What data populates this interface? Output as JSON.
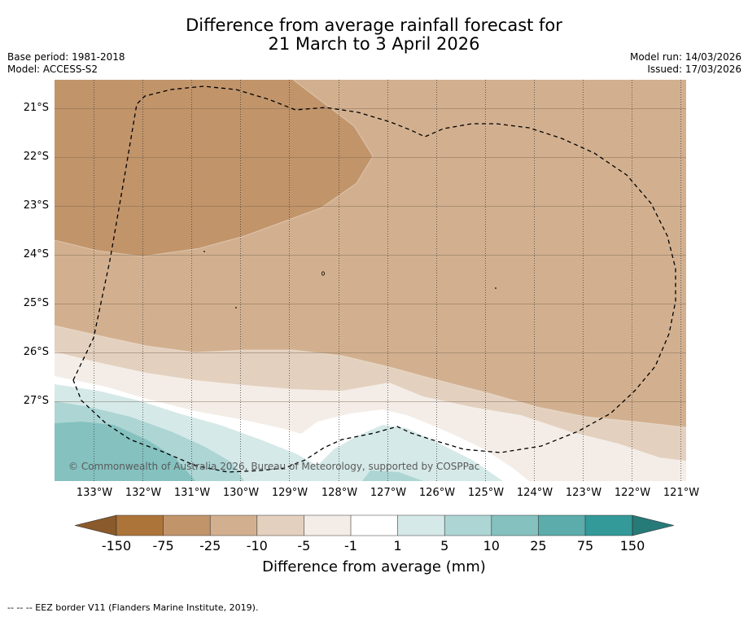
{
  "title": {
    "line1": "Difference from average rainfall forecast for",
    "line2": "21 March to 3 April 2026"
  },
  "meta_left": {
    "base_period": "Base period: 1981-2018",
    "model": "Model: ACCESS-S2"
  },
  "meta_right": {
    "model_run": "Model run: 14/03/2026",
    "issued": "Issued: 17/03/2026"
  },
  "map": {
    "latitude_labels": [
      "21°S",
      "22°S",
      "23°S",
      "24°S",
      "25°S",
      "26°S",
      "27°S"
    ],
    "longitude_labels": [
      "133°W",
      "132°W",
      "131°W",
      "130°W",
      "129°W",
      "128°W",
      "127°W",
      "126°W",
      "125°W",
      "124°W",
      "123°W",
      "122°W",
      "121°W"
    ],
    "copyright": "© Commonwealth of Australia 2026, Bureau of Meteorology, supported by COSPPac"
  },
  "colorbar": {
    "ticks": [
      "-150",
      "-75",
      "-25",
      "-10",
      "-5",
      "-1",
      "1",
      "5",
      "10",
      "25",
      "75",
      "150"
    ],
    "colors": [
      "#ad743a",
      "#c1946a",
      "#d2b08f",
      "#e3d0be",
      "#f4ede7",
      "#ffffff",
      "#d5e9e8",
      "#acd5d4",
      "#84c1bf",
      "#5bacab",
      "#339999"
    ],
    "under_color": "#8a5a2b",
    "over_color": "#267a78",
    "label": "Difference from average (mm)"
  },
  "footnote": "--  --  -- EEZ border V11 (Flanders Marine Institute, 2019)."
}
